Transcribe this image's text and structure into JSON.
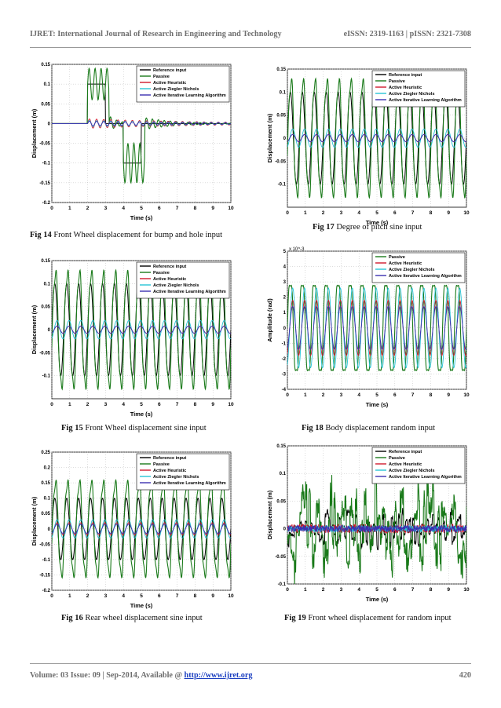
{
  "header": {
    "journal": "IJRET: International Journal of Research in Engineering and Technology",
    "issn": "eISSN: 2319-1163 | pISSN: 2321-7308"
  },
  "footer": {
    "volume_text": "Volume: 03 Issue: 09 | Sep-2014, Available @ ",
    "url": "http://www.ijret.org",
    "page_number": "420"
  },
  "colors": {
    "reference": "#000000",
    "passive": "#1a7a1a",
    "heuristic": "#d0182c",
    "ziegler": "#27c4d6",
    "ilc": "#3a2fb0"
  },
  "figures": [
    {
      "id": "fig14",
      "caption_label": "Fig 14",
      "caption_text": " Front Wheel displacement for bump and hole input",
      "chart_data": {
        "type": "line",
        "title": "",
        "xlabel": "Time (s)",
        "ylabel": "Displacement (m)",
        "xlim": [
          0,
          10
        ],
        "ylim": [
          -0.2,
          0.15
        ],
        "x_ticks": [
          "0",
          "1",
          "2",
          "3",
          "4",
          "5",
          "6",
          "7",
          "8",
          "9",
          "10"
        ],
        "y_ticks": [
          "0.15",
          "0.1",
          "0.05",
          "0",
          "-0.05",
          "-0.1",
          "-0.15",
          "-0.2"
        ],
        "y_tick_values": [
          0.15,
          0.1,
          0.05,
          0,
          -0.05,
          -0.1,
          -0.15,
          -0.2
        ],
        "legend": [
          "Reference input",
          "Passive",
          "Active Heuristic",
          "Active Ziegler Nichols",
          "Active Iterative Learning Algorithm"
        ],
        "legend_position": "top-right",
        "signal": "bump-hole",
        "series": [
          {
            "name": "Reference input",
            "color_key": "reference",
            "amp": 0.0,
            "freq": 0,
            "bump": 0.1
          },
          {
            "name": "Passive",
            "color_key": "passive",
            "amp": 0.14,
            "freq": 1,
            "bump": 0.14
          },
          {
            "name": "Active Heuristic",
            "color_key": "heuristic",
            "amp": 0.012,
            "freq": 1,
            "bump": 0.0
          },
          {
            "name": "Active Ziegler Nichols",
            "color_key": "ziegler",
            "amp": 0.008,
            "freq": 1,
            "bump": 0.0
          },
          {
            "name": "Active Iterative Learning Algorithm",
            "color_key": "ilc",
            "amp": 0.006,
            "freq": 1,
            "bump": 0.0
          }
        ]
      }
    },
    {
      "id": "fig17",
      "caption_label": "Fig 17",
      "caption_text": " Degree of pitch sine input",
      "chart_data": {
        "type": "line",
        "title": "",
        "xlabel": "Time (s)",
        "ylabel": "Displacement (m)",
        "xlim": [
          0,
          10
        ],
        "ylim": [
          -0.15,
          0.15
        ],
        "x_ticks": [
          "0",
          "1",
          "2",
          "3",
          "4",
          "5",
          "6",
          "7",
          "8",
          "9",
          "10"
        ],
        "y_ticks": [
          "0.15",
          "0.1",
          "0.05",
          "0",
          "-0.05",
          "-0.1"
        ],
        "y_tick_values": [
          0.15,
          0.1,
          0.05,
          0,
          -0.05,
          -0.1
        ],
        "legend": [
          "Reference input",
          "Passive",
          "Active Heuristic",
          "Active Ziegler Nichols",
          "Active Iterative Learning Algorithm"
        ],
        "legend_position": "top-right",
        "signal": "sine",
        "series": [
          {
            "name": "Reference input",
            "color_key": "reference",
            "amp": 0.1,
            "freq": 1.5
          },
          {
            "name": "Passive",
            "color_key": "passive",
            "amp": 0.13,
            "freq": 1.5
          },
          {
            "name": "Active Heuristic",
            "color_key": "heuristic",
            "amp": 0.008,
            "freq": 1.5
          },
          {
            "name": "Active Ziegler Nichols",
            "color_key": "ziegler",
            "amp": 0.02,
            "freq": 1.5
          },
          {
            "name": "Active Iterative Learning Algorithm",
            "color_key": "ilc",
            "amp": 0.008,
            "freq": 1.5
          }
        ]
      }
    },
    {
      "id": "fig15",
      "caption_label": "Fig 15",
      "caption_text": " Front Wheel displacement sine input",
      "chart_data": {
        "type": "line",
        "title": "",
        "xlabel": "Time (s)",
        "ylabel": "Displacement (m)",
        "xlim": [
          0,
          10
        ],
        "ylim": [
          -0.15,
          0.15
        ],
        "x_ticks": [
          "0",
          "1",
          "2",
          "3",
          "4",
          "5",
          "6",
          "7",
          "8",
          "9",
          "10"
        ],
        "y_ticks": [
          "0.15",
          "0.1",
          "0.05",
          "0",
          "-0.05",
          "-0.1"
        ],
        "y_tick_values": [
          0.15,
          0.1,
          0.05,
          0,
          -0.05,
          -0.1
        ],
        "legend": [
          "Reference input",
          "Passive",
          "Active Heuristic",
          "Active Ziegler Nichols",
          "Active Iterative Learning Algorithm"
        ],
        "legend_position": "top-right",
        "signal": "sine",
        "series": [
          {
            "name": "Reference input",
            "color_key": "reference",
            "amp": 0.1,
            "freq": 1.5
          },
          {
            "name": "Passive",
            "color_key": "passive",
            "amp": 0.13,
            "freq": 1.5
          },
          {
            "name": "Active Heuristic",
            "color_key": "heuristic",
            "amp": 0.008,
            "freq": 1.5
          },
          {
            "name": "Active Ziegler Nichols",
            "color_key": "ziegler",
            "amp": 0.02,
            "freq": 1.5
          },
          {
            "name": "Active Iterative Learning Algorithm",
            "color_key": "ilc",
            "amp": 0.008,
            "freq": 1.5
          }
        ]
      }
    },
    {
      "id": "fig18",
      "caption_label": "Fig 18",
      "caption_text": " Body displacement random input",
      "chart_data": {
        "type": "line",
        "title": "",
        "xlabel": "Time (s)",
        "ylabel": "Amplitude (rad)",
        "y_exponent": "x 10^-3",
        "xlim": [
          0,
          10
        ],
        "ylim": [
          -4,
          5
        ],
        "x_ticks": [
          "0",
          "1",
          "2",
          "3",
          "4",
          "5",
          "6",
          "7",
          "8",
          "9",
          "10"
        ],
        "y_ticks": [
          "5",
          "4",
          "3",
          "2",
          "1",
          "0",
          "-1",
          "-2",
          "-3",
          "-4"
        ],
        "y_tick_values": [
          5,
          4,
          3,
          2,
          1,
          0,
          -1,
          -2,
          -3,
          -4
        ],
        "legend": [
          "Passive",
          "Active Heuristic",
          "Active Ziegler Nichols",
          "Active Iterative Learning Algorithm"
        ],
        "legend_position": "top-right",
        "signal": "sine",
        "series": [
          {
            "name": "Passive",
            "color_key": "passive",
            "amp": 3.2,
            "freq": 1.5
          },
          {
            "name": "Active Heuristic",
            "color_key": "heuristic",
            "amp": 1.8,
            "freq": 1.5
          },
          {
            "name": "Active Ziegler Nichols",
            "color_key": "ziegler",
            "amp": 2.6,
            "freq": 1.5
          },
          {
            "name": "Active Iterative Learning Algorithm",
            "color_key": "ilc",
            "amp": 1.4,
            "freq": 1.5
          }
        ]
      }
    },
    {
      "id": "fig16",
      "caption_label": "Fig 16",
      "caption_text": " Rear wheel displacement sine input",
      "chart_data": {
        "type": "line",
        "title": "",
        "xlabel": "Time (s)",
        "ylabel": "Displacement (m)",
        "xlim": [
          0,
          10
        ],
        "ylim": [
          -0.2,
          0.25
        ],
        "x_ticks": [
          "0",
          "1",
          "2",
          "3",
          "4",
          "5",
          "6",
          "7",
          "8",
          "9",
          "10"
        ],
        "y_ticks": [
          "0.25",
          "0.2",
          "0.15",
          "0.1",
          "0.05",
          "0",
          "-0.05",
          "-0.1",
          "-0.15",
          "-0.2"
        ],
        "y_tick_values": [
          0.25,
          0.2,
          0.15,
          0.1,
          0.05,
          0,
          -0.05,
          -0.1,
          -0.15,
          -0.2
        ],
        "legend": [
          "Reference input",
          "Passive",
          "Active Heuristic",
          "Active Ziegler Nichols",
          "Active Iterative Learning Algorithm"
        ],
        "legend_position": "top-right",
        "signal": "sine",
        "series": [
          {
            "name": "Reference input",
            "color_key": "reference",
            "amp": 0.1,
            "freq": 1.5
          },
          {
            "name": "Passive",
            "color_key": "passive",
            "amp": 0.16,
            "freq": 1.5
          },
          {
            "name": "Active Heuristic",
            "color_key": "heuristic",
            "amp": 0.02,
            "freq": 1.5
          },
          {
            "name": "Active Ziegler Nichols",
            "color_key": "ziegler",
            "amp": 0.03,
            "freq": 1.5
          },
          {
            "name": "Active Iterative Learning Algorithm",
            "color_key": "ilc",
            "amp": 0.015,
            "freq": 1.5
          }
        ]
      }
    },
    {
      "id": "fig19",
      "caption_label": "Fig 19",
      "caption_text": " Front wheel displacement for random input",
      "chart_data": {
        "type": "line",
        "title": "",
        "xlabel": "Time (s)",
        "ylabel": "Displacement (m)",
        "xlim": [
          0,
          10
        ],
        "ylim": [
          -0.1,
          0.15
        ],
        "x_ticks": [
          "0",
          "1",
          "2",
          "3",
          "4",
          "5",
          "6",
          "7",
          "8",
          "9",
          "10"
        ],
        "y_ticks": [
          "0.15",
          "0.1",
          "0.05",
          "0",
          "-0.05",
          "-0.1"
        ],
        "y_tick_values": [
          0.15,
          0.1,
          0.05,
          0,
          -0.05,
          -0.1
        ],
        "legend": [
          "Reference input",
          "Passive",
          "Active Heuristic",
          "Active Ziegler Nichols",
          "Active Iterative Learning Algorithm"
        ],
        "legend_position": "top-right",
        "signal": "random",
        "series": [
          {
            "name": "Reference input",
            "color_key": "reference",
            "amp": 0.04,
            "freq": 0
          },
          {
            "name": "Passive",
            "color_key": "passive",
            "amp": 0.08,
            "freq": 0
          },
          {
            "name": "Active Heuristic",
            "color_key": "heuristic",
            "amp": 0.008,
            "freq": 0
          },
          {
            "name": "Active Ziegler Nichols",
            "color_key": "ziegler",
            "amp": 0.006,
            "freq": 0
          },
          {
            "name": "Active Iterative Learning Algorithm",
            "color_key": "ilc",
            "amp": 0.006,
            "freq": 0
          }
        ]
      }
    }
  ]
}
